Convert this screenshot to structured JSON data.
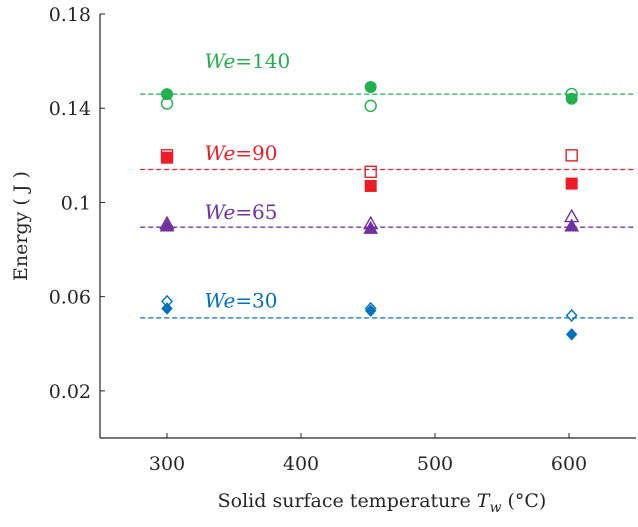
{
  "chart_data": {
    "type": "scatter",
    "xlabel": "Solid surface temperature ",
    "xlabel_var": "T",
    "xlabel_sub": "w",
    "xlabel_unit": " (°C)",
    "ylabel": "Energy ( J )",
    "xlim": [
      250,
      650
    ],
    "ylim": [
      0,
      0.18
    ],
    "xticks": [
      300,
      400,
      500,
      600
    ],
    "yticks": [
      0.02,
      0.06,
      0.1,
      0.14,
      0.18
    ],
    "xtick_labels": [
      "300",
      "400",
      "500",
      "600"
    ],
    "ytick_labels": [
      "0.02",
      "0.06",
      "0.1",
      "0.14",
      "0.18"
    ],
    "grid": false,
    "groups": [
      {
        "label_var": "We",
        "label_value": "=140",
        "color": "#22b14c",
        "ref_line": 0.146,
        "ref_x": [
          280,
          650
        ],
        "label_at": [
          328,
          0.157
        ],
        "filled_marker": "circle",
        "open_marker": "circle",
        "filled": [
          {
            "x": 300,
            "y": 0.146
          },
          {
            "x": 452,
            "y": 0.149
          },
          {
            "x": 602,
            "y": 0.144
          }
        ],
        "open": [
          {
            "x": 300,
            "y": 0.142
          },
          {
            "x": 452,
            "y": 0.141
          },
          {
            "x": 602,
            "y": 0.146
          }
        ]
      },
      {
        "label_var": "We",
        "label_value": "=90",
        "color": "#ee1c24",
        "ref_line": 0.114,
        "ref_x": [
          280,
          650
        ],
        "label_at": [
          328,
          0.118
        ],
        "filled_marker": "square",
        "open_marker": "square",
        "filled": [
          {
            "x": 300,
            "y": 0.119
          },
          {
            "x": 452,
            "y": 0.107
          },
          {
            "x": 602,
            "y": 0.108
          }
        ],
        "open": [
          {
            "x": 300,
            "y": 0.12
          },
          {
            "x": 452,
            "y": 0.113
          },
          {
            "x": 602,
            "y": 0.12
          }
        ]
      },
      {
        "label_var": "We",
        "label_value": "=65",
        "color": "#7030a0",
        "ref_line": 0.0895,
        "ref_x": [
          280,
          650
        ],
        "label_at": [
          328,
          0.093
        ],
        "filled_marker": "triangle",
        "open_marker": "triangle",
        "filled": [
          {
            "x": 300,
            "y": 0.09
          },
          {
            "x": 452,
            "y": 0.089
          },
          {
            "x": 602,
            "y": 0.09
          }
        ],
        "open": [
          {
            "x": 300,
            "y": 0.091
          },
          {
            "x": 452,
            "y": 0.091
          },
          {
            "x": 602,
            "y": 0.094
          }
        ]
      },
      {
        "label_var": "We",
        "label_value": "=30",
        "color": "#0070c0",
        "ref_line": 0.051,
        "ref_x": [
          280,
          650
        ],
        "label_at": [
          328,
          0.0555
        ],
        "filled_marker": "diamond",
        "open_marker": "diamond",
        "filled": [
          {
            "x": 300,
            "y": 0.055
          },
          {
            "x": 452,
            "y": 0.054
          },
          {
            "x": 602,
            "y": 0.044
          }
        ],
        "open": [
          {
            "x": 300,
            "y": 0.058
          },
          {
            "x": 452,
            "y": 0.055
          },
          {
            "x": 602,
            "y": 0.052
          }
        ]
      }
    ]
  }
}
